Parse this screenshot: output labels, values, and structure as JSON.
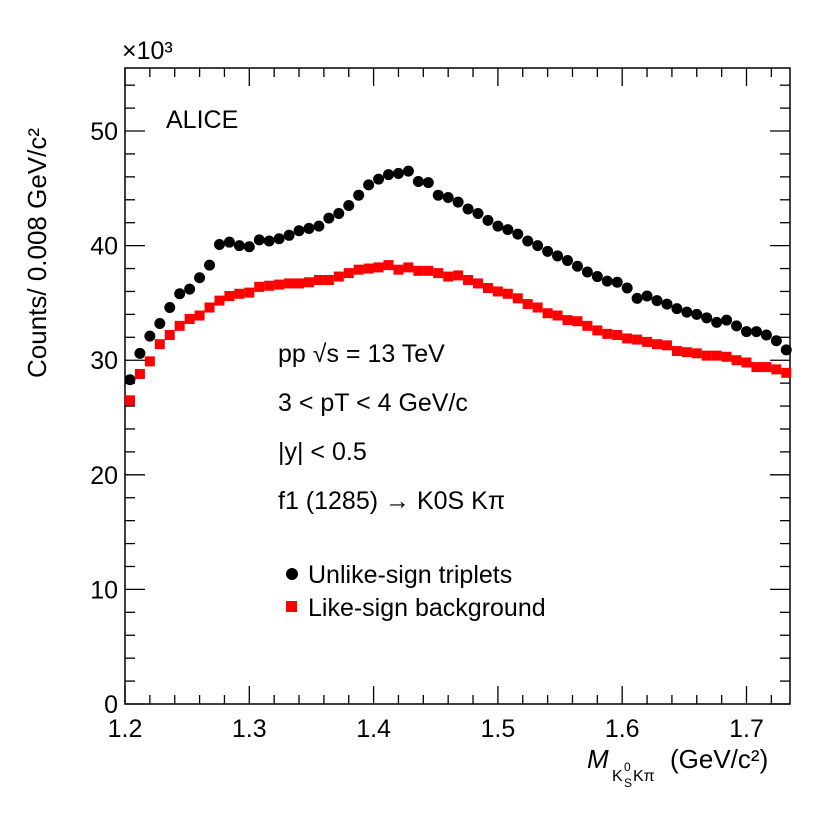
{
  "chart_data": {
    "type": "scatter",
    "experiment_label": "ALICE",
    "xlabel_main": "M",
    "xlabel_subscript_K": "K",
    "xlabel_subscript_zero": "0",
    "xlabel_subscript_S": "S",
    "xlabel_subscript_rest": "Kπ",
    "xlabel_unit": "(GeV/c²)",
    "ylabel": "Counts/ 0.008 GeV/c²",
    "y_multiplier": "×10³",
    "xlim": [
      1.2,
      1.735
    ],
    "ylim": [
      0,
      55.5
    ],
    "x_ticks": [
      1.2,
      1.3,
      1.4,
      1.5,
      1.6,
      1.7
    ],
    "x_tick_labels": [
      "1.2",
      "1.3",
      "1.4",
      "1.5",
      "1.6",
      "1.7"
    ],
    "y_ticks": [
      0,
      10,
      20,
      30,
      40,
      50
    ],
    "y_tick_labels": [
      "0",
      "10",
      "20",
      "30",
      "40",
      "50"
    ],
    "annotations": [
      "pp √s = 13 TeV",
      "3 < pT < 4 GeV/c",
      "|y| < 0.5",
      "f1 (1285) → K0S Kπ"
    ],
    "series": [
      {
        "name": "Unlike-sign triplets",
        "marker": "circle",
        "color": "#000000",
        "x": [
          1.204,
          1.212,
          1.22,
          1.228,
          1.236,
          1.244,
          1.252,
          1.26,
          1.268,
          1.276,
          1.284,
          1.292,
          1.3,
          1.308,
          1.316,
          1.324,
          1.332,
          1.34,
          1.348,
          1.356,
          1.364,
          1.372,
          1.38,
          1.388,
          1.396,
          1.404,
          1.412,
          1.42,
          1.428,
          1.436,
          1.444,
          1.452,
          1.46,
          1.468,
          1.476,
          1.484,
          1.492,
          1.5,
          1.508,
          1.516,
          1.524,
          1.532,
          1.54,
          1.548,
          1.556,
          1.564,
          1.572,
          1.58,
          1.588,
          1.596,
          1.604,
          1.612,
          1.62,
          1.628,
          1.636,
          1.644,
          1.652,
          1.66,
          1.668,
          1.676,
          1.684,
          1.692,
          1.7,
          1.708,
          1.716,
          1.724,
          1.732
        ],
        "values": [
          28.3,
          30.6,
          32.1,
          33.2,
          34.6,
          35.8,
          36.2,
          37.2,
          38.3,
          40.1,
          40.3,
          40.0,
          39.9,
          40.5,
          40.4,
          40.6,
          40.9,
          41.3,
          41.5,
          41.7,
          42.4,
          42.8,
          43.5,
          44.4,
          45.3,
          45.8,
          46.2,
          46.3,
          46.5,
          45.6,
          45.5,
          44.4,
          44.2,
          43.8,
          43.2,
          42.8,
          42.2,
          41.7,
          41.4,
          41.0,
          40.4,
          40.0,
          39.5,
          39.1,
          38.7,
          38.2,
          37.7,
          37.3,
          36.9,
          36.8,
          36.3,
          35.4,
          35.6,
          35.2,
          34.9,
          34.5,
          34.2,
          34.0,
          33.7,
          33.3,
          33.5,
          33.0,
          32.5,
          32.5,
          32.2,
          31.7,
          30.9
        ]
      },
      {
        "name": "Like-sign background",
        "marker": "square",
        "color": "#ff0000",
        "x": [
          1.204,
          1.212,
          1.22,
          1.228,
          1.236,
          1.244,
          1.252,
          1.26,
          1.268,
          1.276,
          1.284,
          1.292,
          1.3,
          1.308,
          1.316,
          1.324,
          1.332,
          1.34,
          1.348,
          1.356,
          1.364,
          1.372,
          1.38,
          1.388,
          1.396,
          1.404,
          1.412,
          1.42,
          1.428,
          1.436,
          1.444,
          1.452,
          1.46,
          1.468,
          1.476,
          1.484,
          1.492,
          1.5,
          1.508,
          1.516,
          1.524,
          1.532,
          1.54,
          1.548,
          1.556,
          1.564,
          1.572,
          1.58,
          1.588,
          1.596,
          1.604,
          1.612,
          1.62,
          1.628,
          1.636,
          1.644,
          1.652,
          1.66,
          1.668,
          1.676,
          1.684,
          1.692,
          1.7,
          1.708,
          1.716,
          1.724,
          1.732
        ],
        "values": [
          26.5,
          28.8,
          29.9,
          31.4,
          32.2,
          33.0,
          33.6,
          33.9,
          34.6,
          35.2,
          35.6,
          35.8,
          35.9,
          36.4,
          36.5,
          36.6,
          36.7,
          36.7,
          36.8,
          37.0,
          37.0,
          37.3,
          37.6,
          37.9,
          38.0,
          38.1,
          38.3,
          37.9,
          38.1,
          37.8,
          37.8,
          37.6,
          37.3,
          37.4,
          37.0,
          36.7,
          36.3,
          36.0,
          35.8,
          35.4,
          34.9,
          34.6,
          34.1,
          33.9,
          33.5,
          33.4,
          33.0,
          32.6,
          32.3,
          32.2,
          31.9,
          31.8,
          31.6,
          31.4,
          31.3,
          30.8,
          30.7,
          30.6,
          30.4,
          30.4,
          30.3,
          30.0,
          29.8,
          29.4,
          29.4,
          29.2,
          28.9
        ]
      }
    ]
  }
}
